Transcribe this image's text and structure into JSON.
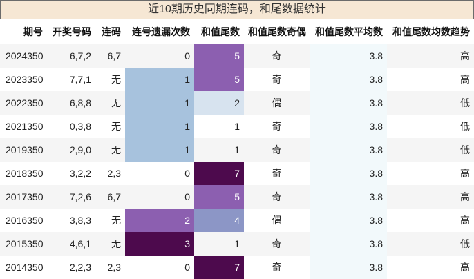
{
  "title": "近10期历史同期连码，和尾数据统计",
  "headers": [
    "期号",
    "开奖号码",
    "连码",
    "连号遗漏次数",
    "和值尾数",
    "和值尾数奇偶",
    "和值尾数平均数",
    "和值尾数均数趋势"
  ],
  "rows": [
    {
      "issue": "2024350",
      "numbers": "6,7,2",
      "lianma": "6,7",
      "miss": "0",
      "tail": "5",
      "parity": "奇",
      "avg": "3.8",
      "trend": "高"
    },
    {
      "issue": "2023350",
      "numbers": "7,7,1",
      "lianma": "无",
      "miss": "1",
      "tail": "5",
      "parity": "奇",
      "avg": "3.8",
      "trend": "高"
    },
    {
      "issue": "2022350",
      "numbers": "6,8,8",
      "lianma": "无",
      "miss": "1",
      "tail": "2",
      "parity": "偶",
      "avg": "3.8",
      "trend": "低"
    },
    {
      "issue": "2021350",
      "numbers": "0,3,8",
      "lianma": "无",
      "miss": "1",
      "tail": "1",
      "parity": "奇",
      "avg": "3.8",
      "trend": "低"
    },
    {
      "issue": "2019350",
      "numbers": "2,9,0",
      "lianma": "无",
      "miss": "1",
      "tail": "1",
      "parity": "奇",
      "avg": "3.8",
      "trend": "低"
    },
    {
      "issue": "2018350",
      "numbers": "3,2,2",
      "lianma": "2,3",
      "miss": "0",
      "tail": "7",
      "parity": "奇",
      "avg": "3.8",
      "trend": "高"
    },
    {
      "issue": "2017350",
      "numbers": "7,2,6",
      "lianma": "6,7",
      "miss": "0",
      "tail": "5",
      "parity": "奇",
      "avg": "3.8",
      "trend": "高"
    },
    {
      "issue": "2016350",
      "numbers": "3,8,3",
      "lianma": "无",
      "miss": "2",
      "tail": "4",
      "parity": "偶",
      "avg": "3.8",
      "trend": "高"
    },
    {
      "issue": "2015350",
      "numbers": "4,6,1",
      "lianma": "无",
      "miss": "3",
      "tail": "1",
      "parity": "奇",
      "avg": "3.8",
      "trend": "低"
    },
    {
      "issue": "2014350",
      "numbers": "2,2,3",
      "lianma": "2,3",
      "miss": "0",
      "tail": "7",
      "parity": "奇",
      "avg": "3.8",
      "trend": "高"
    }
  ],
  "colors": {
    "title_bg": "#f6e7d4",
    "miss_scale": {
      "1": "#a7c2dd",
      "2": "#8c5fb0",
      "3": "#4d0a4d"
    },
    "tail_scale": {
      "2": "#d7e3ef",
      "4": "#8c96c6",
      "5": "#8c5fb0",
      "7": "#4d0a4d"
    }
  }
}
